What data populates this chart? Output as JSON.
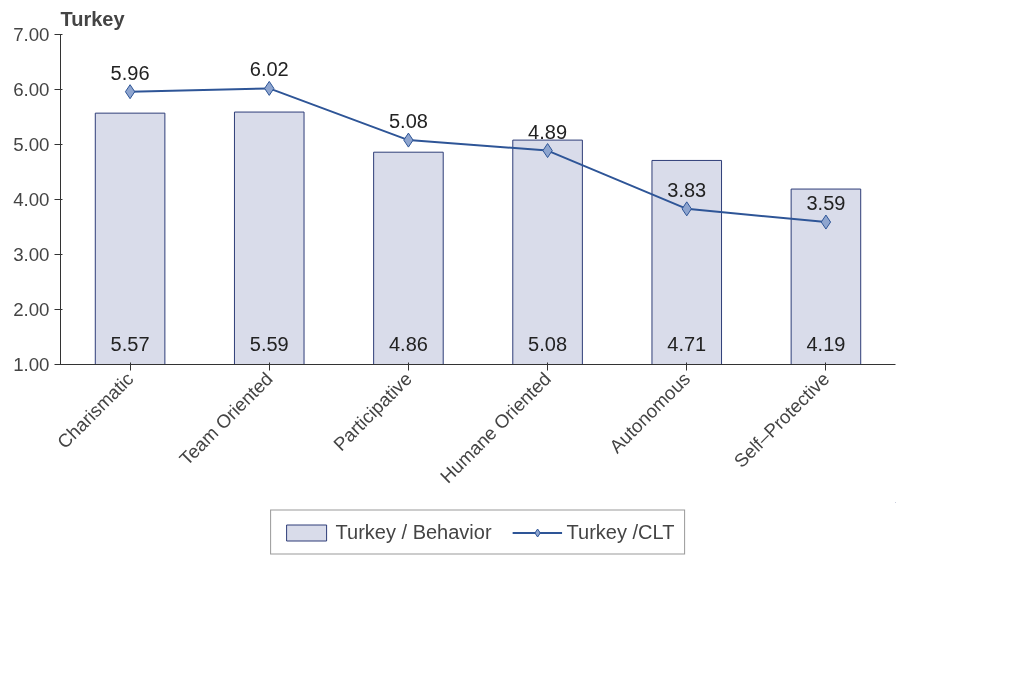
{
  "chart_data": {
    "type": "bar",
    "title": "Turkey",
    "categories": [
      "Charismatic",
      "Team Oriented",
      "Participative",
      "Humane Oriented",
      "Autonomous",
      "Self–Protective"
    ],
    "series": [
      {
        "name": "Turkey / Behavior",
        "color": "#d9dcea",
        "values": [
          5.57,
          5.59,
          4.86,
          5.08,
          4.71,
          4.19
        ]
      },
      {
        "name": "Turkey /CLT",
        "type": "line",
        "color": "#2e5597",
        "marker": "diamond",
        "values": [
          5.96,
          6.02,
          5.08,
          4.89,
          3.83,
          3.59
        ]
      }
    ],
    "ylim": [
      1,
      7
    ],
    "yticks": [
      {
        "value": 1,
        "label": "1.00"
      },
      {
        "value": 2,
        "label": "2.00"
      },
      {
        "value": 3,
        "label": "3.00"
      },
      {
        "value": 4,
        "label": "4.00"
      },
      {
        "value": 5,
        "label": "5.00"
      },
      {
        "value": 6,
        "label": "6.00"
      },
      {
        "value": 7,
        "label": "7.00"
      }
    ],
    "data_labels": true,
    "grid": false,
    "legend": "bottom"
  }
}
